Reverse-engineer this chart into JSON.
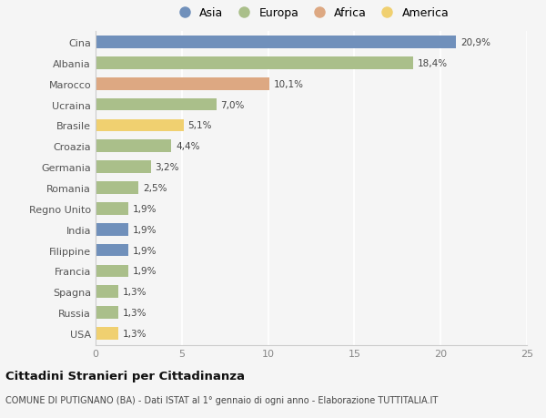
{
  "countries": [
    "Cina",
    "Albania",
    "Marocco",
    "Ucraina",
    "Brasile",
    "Croazia",
    "Germania",
    "Romania",
    "Regno Unito",
    "India",
    "Filippine",
    "Francia",
    "Spagna",
    "Russia",
    "USA"
  ],
  "values": [
    20.9,
    18.4,
    10.1,
    7.0,
    5.1,
    4.4,
    3.2,
    2.5,
    1.9,
    1.9,
    1.9,
    1.9,
    1.3,
    1.3,
    1.3
  ],
  "labels": [
    "20,9%",
    "18,4%",
    "10,1%",
    "7,0%",
    "5,1%",
    "4,4%",
    "3,2%",
    "2,5%",
    "1,9%",
    "1,9%",
    "1,9%",
    "1,9%",
    "1,3%",
    "1,3%",
    "1,3%"
  ],
  "categories": [
    "Asia",
    "Europa",
    "Africa",
    "America"
  ],
  "continent": [
    "Asia",
    "Europa",
    "Africa",
    "Europa",
    "America",
    "Europa",
    "Europa",
    "Europa",
    "Europa",
    "Asia",
    "Asia",
    "Europa",
    "Europa",
    "Europa",
    "America"
  ],
  "colors": {
    "Asia": "#7090bb",
    "Europa": "#aabf8a",
    "Africa": "#dda882",
    "America": "#f0d070"
  },
  "title": "Cittadini Stranieri per Cittadinanza",
  "subtitle": "COMUNE DI PUTIGNANO (BA) - Dati ISTAT al 1° gennaio di ogni anno - Elaborazione TUTTITALIA.IT",
  "xlim": [
    0,
    25
  ],
  "background_color": "#f5f5f5",
  "grid_color": "#ffffff",
  "bar_height": 0.6
}
